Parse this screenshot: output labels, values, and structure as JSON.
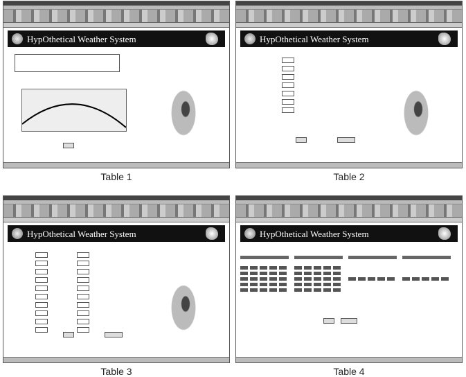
{
  "panels": [
    {
      "banner": "HypOthetical Weather System",
      "caption": "Table 1"
    },
    {
      "banner": "HypOthetical Weather System",
      "caption": "Table 2"
    },
    {
      "banner": "HypOthetical Weather System",
      "caption": "Table 3"
    },
    {
      "banner": "HypOthetical Weather System",
      "caption": "Table 4"
    }
  ]
}
